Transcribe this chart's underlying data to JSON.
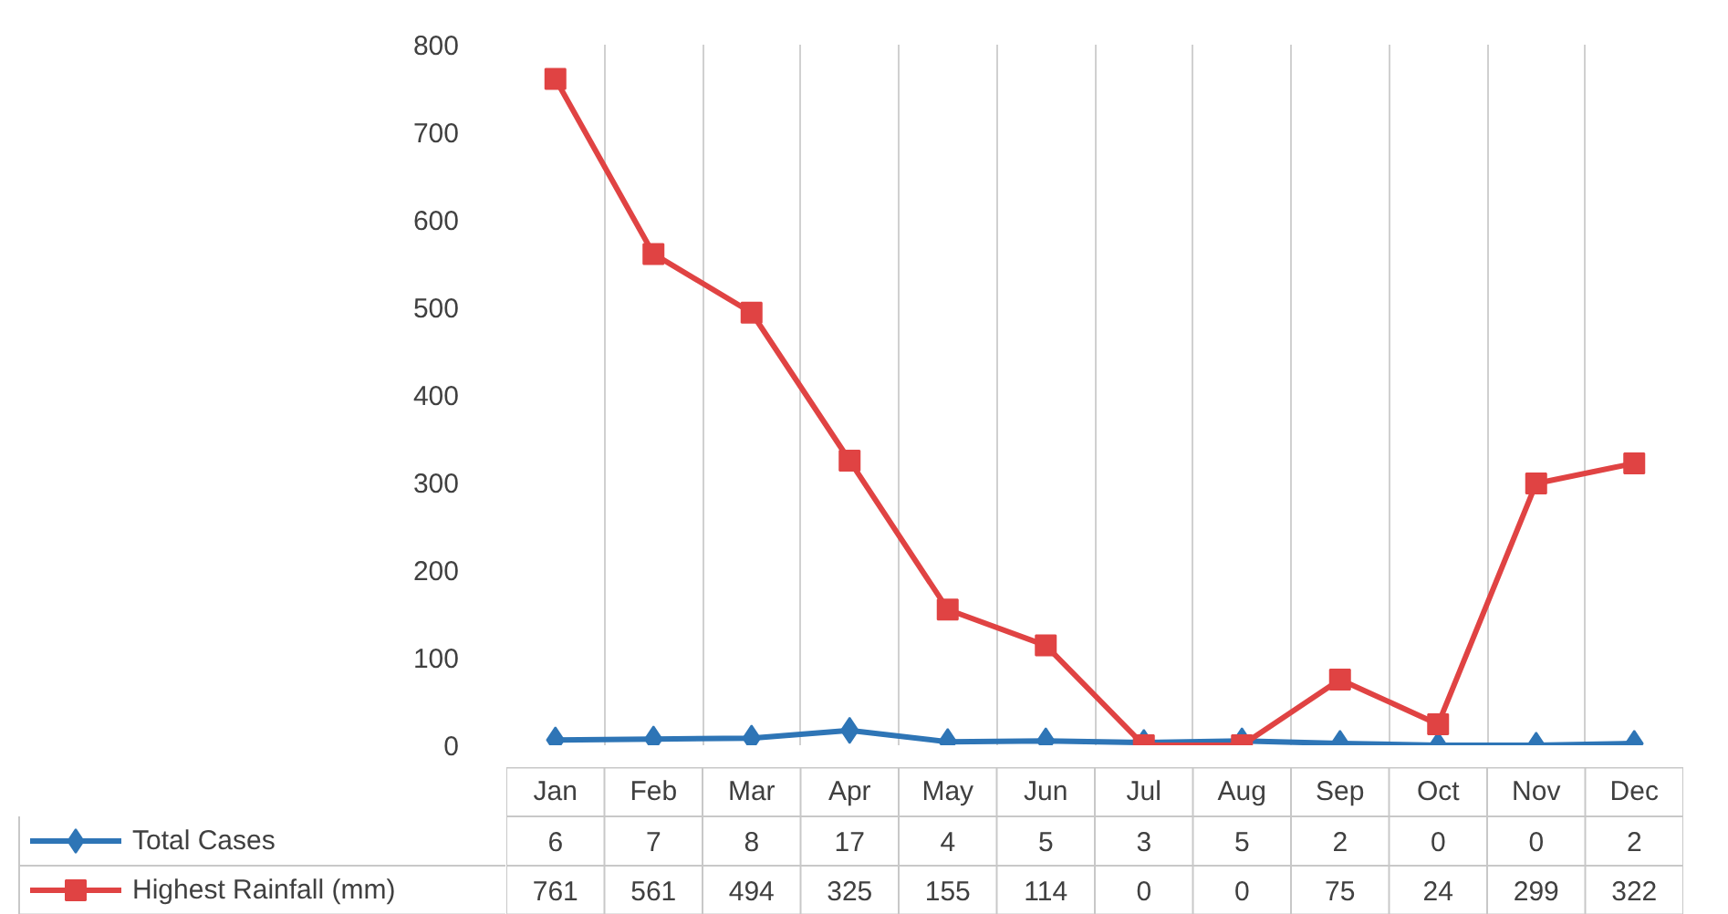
{
  "chart_data": {
    "type": "line",
    "categories": [
      "Jan",
      "Feb",
      "Mar",
      "Apr",
      "May",
      "Jun",
      "Jul",
      "Aug",
      "Sep",
      "Oct",
      "Nov",
      "Dec"
    ],
    "series": [
      {
        "name": "Total Cases",
        "color": "#2e75b6",
        "marker": "diamond",
        "values": [
          6,
          7,
          8,
          17,
          4,
          5,
          3,
          5,
          2,
          0,
          0,
          2
        ]
      },
      {
        "name": "Highest Rainfall (mm)",
        "color": "#e04343",
        "marker": "square",
        "values": [
          761,
          561,
          494,
          325,
          155,
          114,
          0,
          0,
          75,
          24,
          299,
          322
        ]
      }
    ],
    "ylim": [
      0,
      800
    ],
    "yticks": [
      0,
      100,
      200,
      300,
      400,
      500,
      600,
      700,
      800
    ],
    "grid": "x",
    "legend": "bottom",
    "data_labels": true,
    "line_style": "solid"
  }
}
